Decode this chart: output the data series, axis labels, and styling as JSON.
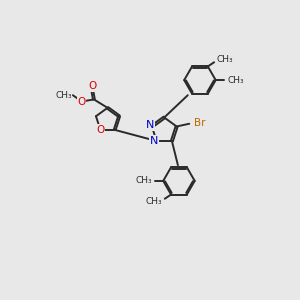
{
  "background_color": "#e8e8e8",
  "figsize": [
    3.0,
    3.0
  ],
  "dpi": 100,
  "bond_color": "#2a2a2a",
  "bond_lw": 1.4,
  "N_color": "#0000cc",
  "O_color": "#dd0000",
  "Br_color": "#bb6600",
  "C_color": "#2a2a2a",
  "fs": 7.0,
  "xlim": [
    -1.0,
    9.0
  ],
  "ylim": [
    -2.5,
    8.5
  ]
}
